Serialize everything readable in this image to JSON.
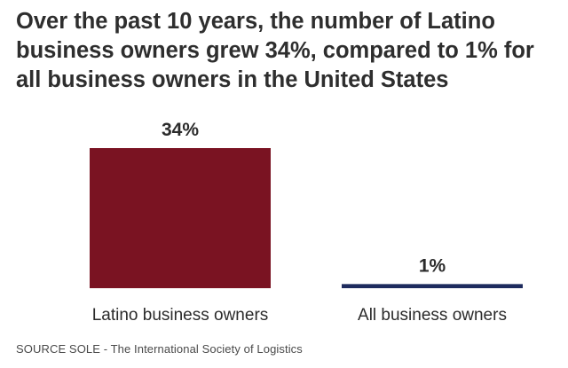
{
  "chart_data": {
    "type": "bar",
    "title": "Over the past 10 years, the number of Latino business owners grew 34%, compared to 1% for all business owners in the United States",
    "categories": [
      "Latino business owners",
      "All business owners"
    ],
    "values": [
      34,
      1
    ],
    "value_labels": [
      "34%",
      "1%"
    ],
    "colors": [
      "#7a1322",
      "#1e2b5e"
    ],
    "ylim": [
      0,
      34
    ],
    "grid": false,
    "legend": "none",
    "xlabel": "",
    "ylabel": ""
  },
  "source": "SOURCE SOLE - The International Society of Logistics"
}
